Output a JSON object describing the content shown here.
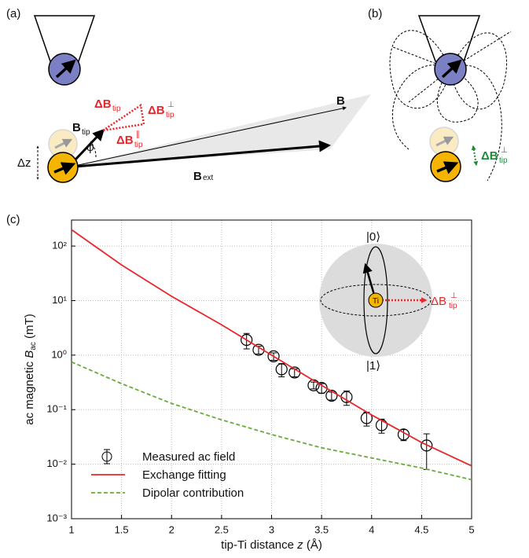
{
  "panels": {
    "a": {
      "label": "(a)",
      "b": "B",
      "b_tip": [
        "B",
        "tip"
      ],
      "delta_b_tip": [
        "ΔB",
        "tip"
      ],
      "delta_b_perp": [
        "ΔB",
        "tip",
        "⊥"
      ],
      "delta_b_par": [
        "ΔB",
        "tip",
        "∥"
      ],
      "phi": "φ",
      "delta_z": "Δz",
      "b_ext": [
        "B",
        "ext"
      ]
    },
    "b": {
      "label": "(b)",
      "delta_b_perp": [
        "ΔB",
        "tip",
        "⊥"
      ]
    },
    "c": {
      "label": "(c)",
      "inset": {
        "state0": "|0⟩",
        "state1": "|1⟩",
        "atom": "Ti",
        "delta_b_perp": [
          "ΔB",
          "tip",
          "⊥"
        ]
      }
    }
  },
  "chart_data": {
    "type": "line",
    "x_label": [
      "tip-Ti distance ",
      "z",
      " (Å)"
    ],
    "y_label": [
      "ac magnetic ",
      "B",
      "ac",
      " (mT)"
    ],
    "xlim": [
      1,
      5
    ],
    "xticks": [
      1,
      1.5,
      2,
      2.5,
      3,
      3.5,
      4,
      4.5,
      5
    ],
    "ylim": [
      0.001,
      300
    ],
    "yscale": "log",
    "yticks": [
      {
        "value": 0.001,
        "label": "10⁻³"
      },
      {
        "value": 0.01,
        "label": "10⁻²"
      },
      {
        "value": 0.1,
        "label": "10⁻¹"
      },
      {
        "value": 1,
        "label": "10⁰"
      },
      {
        "value": 10,
        "label": "10¹"
      },
      {
        "value": 100,
        "label": "10²"
      }
    ],
    "grid": true,
    "legend": "lower left",
    "series": [
      {
        "name": "Measured ac field",
        "kind": "errorbar",
        "color": "#000000",
        "x": [
          2.75,
          2.87,
          3.02,
          3.1,
          3.23,
          3.42,
          3.5,
          3.6,
          3.75,
          3.95,
          4.1,
          4.32,
          4.55
        ],
        "values": [
          1.9,
          1.25,
          0.95,
          0.55,
          0.48,
          0.28,
          0.25,
          0.18,
          0.17,
          0.07,
          0.052,
          0.035,
          0.022
        ],
        "errors": [
          0.6,
          0.2,
          0.15,
          0.15,
          0.08,
          0.04,
          0.05,
          0.03,
          0.05,
          0.02,
          0.015,
          0.008,
          0.014
        ]
      },
      {
        "name": "Exchange fitting",
        "kind": "line",
        "linestyle": "solid",
        "color": "#e8262b",
        "x": [
          1,
          1.5,
          2,
          2.5,
          3,
          3.5,
          4,
          4.5,
          5
        ],
        "values": [
          200,
          45,
          12,
          3.6,
          1.0,
          0.28,
          0.08,
          0.025,
          0.0093
        ]
      },
      {
        "name": "Dipolar contribution",
        "kind": "line",
        "linestyle": "dashed",
        "color": "#6aaa3a",
        "x": [
          1,
          1.5,
          2,
          2.5,
          3,
          3.5,
          4,
          4.5,
          5
        ],
        "values": [
          0.75,
          0.3,
          0.13,
          0.065,
          0.035,
          0.02,
          0.013,
          0.0085,
          0.0052
        ]
      }
    ]
  }
}
